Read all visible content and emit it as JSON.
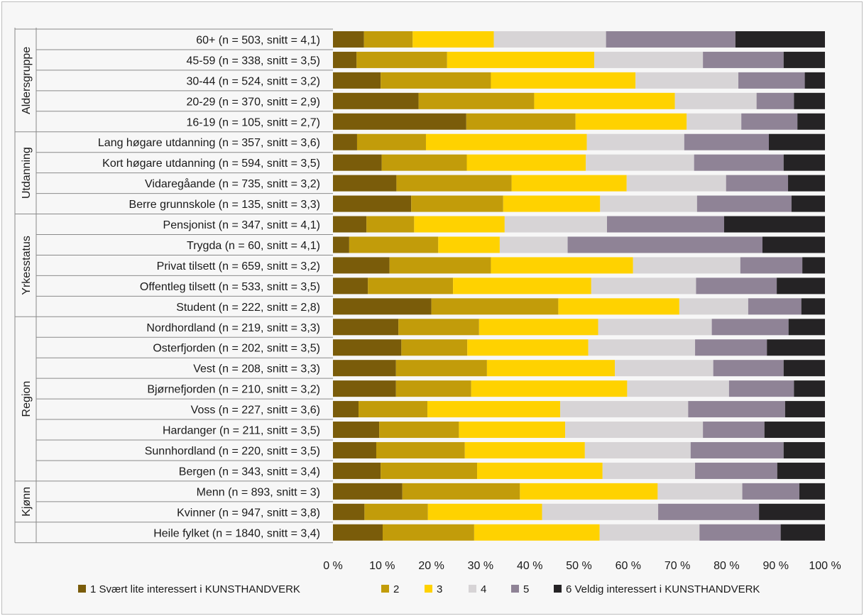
{
  "chart_data": {
    "type": "bar",
    "orientation": "horizontal",
    "stacked": true,
    "percent": true,
    "title": "",
    "xlabel": "",
    "ylabel": "",
    "xlim": [
      0,
      100
    ],
    "x_ticks": [
      "0 %",
      "10 %",
      "20 %",
      "30 %",
      "40 %",
      "50 %",
      "60 %",
      "70 %",
      "80 %",
      "90 %",
      "100 %"
    ],
    "legend_position": "bottom",
    "series": [
      {
        "name": "1 Svært lite interessert i KUNSTHANDVERK",
        "color": "#7a5c0a"
      },
      {
        "name": "2",
        "color": "#c29c0a"
      },
      {
        "name": "3",
        "color": "#ffd200"
      },
      {
        "name": "4",
        "color": "#d7d4d6"
      },
      {
        "name": "5",
        "color": "#8f8396"
      },
      {
        "name": "6 Veldig interessert i KUNSTHANDVERK",
        "color": "#252325"
      }
    ],
    "groups": [
      {
        "label": "Aldersgruppe",
        "rows": [
          {
            "label": "60+ (n = 503, snitt = 4,1)",
            "values": [
              6.3,
              9.9,
              16.5,
              22.8,
              26.3,
              18.2
            ]
          },
          {
            "label": "45-59 (n = 338, snitt = 3,5)",
            "values": [
              4.8,
              18.4,
              29.9,
              22.1,
              16.4,
              8.4
            ]
          },
          {
            "label": "30-44 (n = 524, snitt = 3,2)",
            "values": [
              9.7,
              22.4,
              29.4,
              20.9,
              13.5,
              4.1
            ]
          },
          {
            "label": "20-29 (n = 370, snitt = 2,9)",
            "values": [
              17.4,
              23.5,
              28.6,
              16.6,
              7.6,
              6.3
            ]
          },
          {
            "label": "16-19 (n = 105, snitt = 2,7)",
            "values": [
              27.1,
              22.2,
              22.6,
              11.1,
              11.4,
              5.6
            ]
          }
        ]
      },
      {
        "label": "Utdanning",
        "rows": [
          {
            "label": "Lang høgare utdanning (n = 357, snitt = 3,6)",
            "values": [
              4.9,
              14.0,
              32.7,
              19.8,
              17.2,
              11.4
            ]
          },
          {
            "label": "Kort høgare utdanning (n = 594, snitt = 3,5)",
            "values": [
              9.9,
              17.3,
              24.2,
              22.0,
              18.2,
              8.4
            ]
          },
          {
            "label": "Vidaregåande (n = 735, snitt = 3,2)",
            "values": [
              12.9,
              23.4,
              23.4,
              20.2,
              12.6,
              7.5
            ]
          },
          {
            "label": "Berre grunnskole (n = 135, snitt = 3,3)",
            "values": [
              15.9,
              18.7,
              19.7,
              19.7,
              19.2,
              6.8
            ]
          }
        ]
      },
      {
        "label": "Yrkesstatus",
        "rows": [
          {
            "label": "Pensjonist (n = 347, snitt = 4,1)",
            "values": [
              6.8,
              9.7,
              18.4,
              20.8,
              23.8,
              20.5
            ]
          },
          {
            "label": "Trygda (n = 60, snitt = 4,1)",
            "values": [
              3.3,
              18.1,
              12.5,
              13.8,
              39.6,
              12.7
            ]
          },
          {
            "label": "Privat tilsett (n = 659, snitt = 3,2)",
            "values": [
              11.5,
              20.6,
              28.9,
              21.8,
              12.6,
              4.6
            ]
          },
          {
            "label": "Offentleg tilsett (n = 533, snitt = 3,5)",
            "values": [
              7.1,
              17.3,
              28.1,
              21.3,
              16.4,
              9.8
            ]
          },
          {
            "label": "Student (n = 222, snitt = 2,8)",
            "values": [
              20.0,
              25.8,
              24.6,
              14.0,
              10.8,
              4.8
            ]
          }
        ]
      },
      {
        "label": "Region",
        "rows": [
          {
            "label": "Nordhordland (n = 219, snitt = 3,3)",
            "values": [
              13.3,
              16.4,
              24.2,
              23.1,
              15.6,
              7.4
            ]
          },
          {
            "label": "Osterfjorden (n = 202, snitt = 3,5)",
            "values": [
              13.9,
              13.4,
              24.6,
              21.7,
              14.6,
              11.8
            ]
          },
          {
            "label": "Vest (n = 208, snitt = 3,3)",
            "values": [
              12.8,
              18.5,
              26.0,
              20.0,
              14.3,
              8.4
            ]
          },
          {
            "label": "Bjørnefjorden (n = 210, snitt = 3,2)",
            "values": [
              12.8,
              15.3,
              31.7,
              20.7,
              13.2,
              6.3
            ]
          },
          {
            "label": "Voss (n = 227, snitt = 3,6)",
            "values": [
              5.2,
              14.0,
              27.0,
              26.0,
              19.7,
              8.1
            ]
          },
          {
            "label": "Hardanger (n = 211, snitt = 3,5)",
            "values": [
              9.4,
              16.2,
              21.6,
              28.0,
              12.5,
              12.3
            ]
          },
          {
            "label": "Sunnhordland (n = 220, snitt = 3,5)",
            "values": [
              8.8,
              18.0,
              24.4,
              21.5,
              18.9,
              8.4
            ]
          },
          {
            "label": "Bergen (n = 343, snitt = 3,4)",
            "values": [
              9.7,
              19.6,
              25.5,
              18.8,
              16.7,
              9.7
            ]
          }
        ]
      },
      {
        "label": "Kjønn",
        "rows": [
          {
            "label": "Menn (n = 893, snitt = 3)",
            "values": [
              14.1,
              23.9,
              28.0,
              17.2,
              11.6,
              5.2
            ]
          },
          {
            "label": "Kvinner (n = 947, snitt = 3,8)",
            "values": [
              6.4,
              12.9,
              23.2,
              23.6,
              20.5,
              13.4
            ]
          }
        ]
      },
      {
        "label": "",
        "rows": [
          {
            "label": "Heile fylket (n = 1840, snitt = 3,4)",
            "values": [
              10.1,
              18.6,
              25.5,
              20.3,
              16.5,
              9.0
            ]
          }
        ]
      }
    ]
  }
}
